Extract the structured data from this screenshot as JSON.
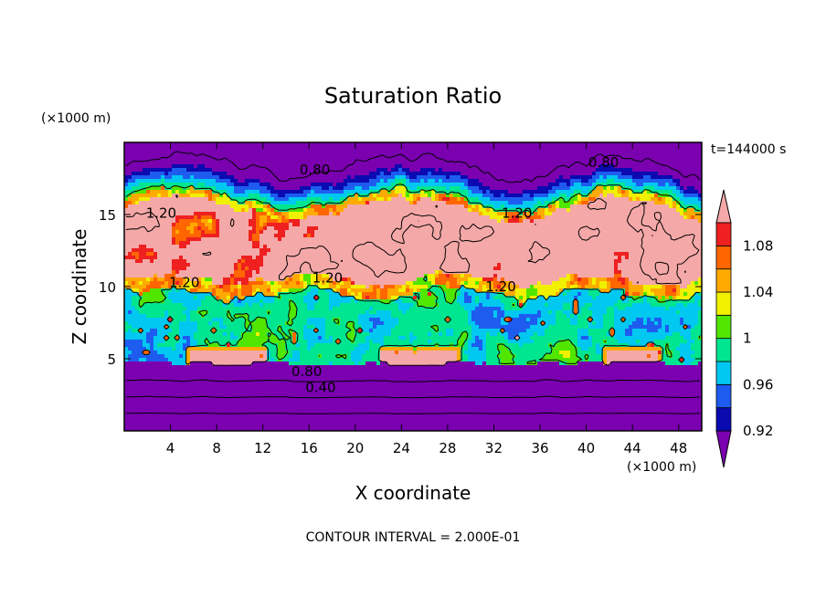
{
  "chart_data": {
    "type": "heatmap",
    "title": "Saturation Ratio",
    "xlabel": "X coordinate",
    "ylabel": "Z coordinate",
    "x_unit": "(×1000 m)",
    "y_unit": "(×1000 m)",
    "time_label": "t=144000 s",
    "footer": "CONTOUR INTERVAL = 2.000E-01",
    "xlim": [
      0,
      50
    ],
    "ylim": [
      0,
      20
    ],
    "x_ticks": [
      "4",
      "8",
      "12",
      "16",
      "20",
      "24",
      "28",
      "32",
      "36",
      "40",
      "44",
      "48"
    ],
    "x_tick_values": [
      4,
      8,
      12,
      16,
      20,
      24,
      28,
      32,
      36,
      40,
      44,
      48
    ],
    "y_ticks": [
      "5",
      "10",
      "15"
    ],
    "y_tick_values": [
      5,
      10,
      15
    ],
    "colorbar": {
      "labels": [
        "1.08",
        "1.04",
        "1",
        "0.96",
        "0.92"
      ],
      "label_values": [
        1.08,
        1.04,
        1.0,
        0.96,
        0.92
      ],
      "levels": [
        0.9,
        0.92,
        0.94,
        0.96,
        0.98,
        1.0,
        1.02,
        1.04,
        1.06,
        1.08,
        1.1
      ],
      "colors": [
        "#7a00b0",
        "#0a0ab0",
        "#1e5cf0",
        "#00c8f0",
        "#00e690",
        "#50e600",
        "#f0f000",
        "#ffaa00",
        "#ff6600",
        "#ee2020",
        "#f5a8a8"
      ],
      "extends": "both"
    },
    "contour_labels": [
      {
        "text": "0.80",
        "x": 16.5,
        "z": 18.1
      },
      {
        "text": "0.80",
        "x": 41.5,
        "z": 18.6
      },
      {
        "text": "1.20",
        "x": 3.2,
        "z": 15.1
      },
      {
        "text": "1.20",
        "x": 34.0,
        "z": 15.1
      },
      {
        "text": "1.20",
        "x": 17.6,
        "z": 10.6
      },
      {
        "text": "1.20",
        "x": 5.2,
        "z": 10.3
      },
      {
        "text": "1.20",
        "x": 32.6,
        "z": 10.0
      },
      {
        "text": "0.80",
        "x": 15.8,
        "z": 4.1
      },
      {
        "text": "0.40",
        "x": 17.0,
        "z": 3.0
      }
    ]
  }
}
